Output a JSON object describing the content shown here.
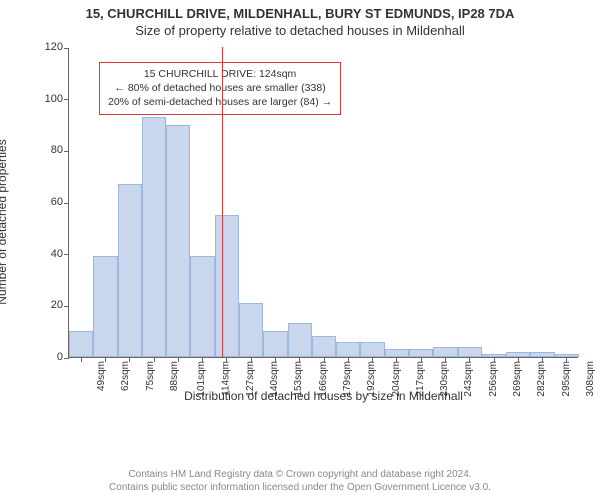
{
  "title_main": "15, CHURCHILL DRIVE, MILDENHALL, BURY ST EDMUNDS, IP28 7DA",
  "title_sub": "Size of property relative to detached houses in Mildenhall",
  "chart": {
    "type": "histogram",
    "ylabel": "Number of detached properties",
    "xlabel": "Distribution of detached houses by size in Mildenhall",
    "ylim": [
      0,
      120
    ],
    "ytick_step": 20,
    "background_color": "#ffffff",
    "axis_color": "#666666",
    "bar_fill": "#c9d7ee",
    "bar_border": "#9fb7de",
    "bar_width_ratio": 1.0,
    "ref_line_color": "#d63a3a",
    "ref_line_value": 124,
    "categories": [
      "49sqm",
      "62sqm",
      "75sqm",
      "88sqm",
      "101sqm",
      "114sqm",
      "127sqm",
      "140sqm",
      "153sqm",
      "166sqm",
      "179sqm",
      "192sqm",
      "204sqm",
      "217sqm",
      "230sqm",
      "243sqm",
      "256sqm",
      "269sqm",
      "282sqm",
      "295sqm",
      "308sqm"
    ],
    "values": [
      10,
      39,
      67,
      93,
      90,
      39,
      55,
      21,
      10,
      13,
      8,
      6,
      6,
      3,
      3,
      4,
      4,
      1,
      2,
      2,
      1
    ],
    "label_fontsize": 12,
    "tick_fontsize": 11
  },
  "info_box": {
    "border_color": "#d63a3a",
    "line1": "15 CHURCHILL DRIVE: 124sqm",
    "line2": "← 80% of detached houses are smaller (338)",
    "line3": "20% of semi-detached houses are larger (84) →"
  },
  "attribution": {
    "line1": "Contains HM Land Registry data © Crown copyright and database right 2024.",
    "line2": "Contains public sector information licensed under the Open Government Licence v3.0."
  }
}
